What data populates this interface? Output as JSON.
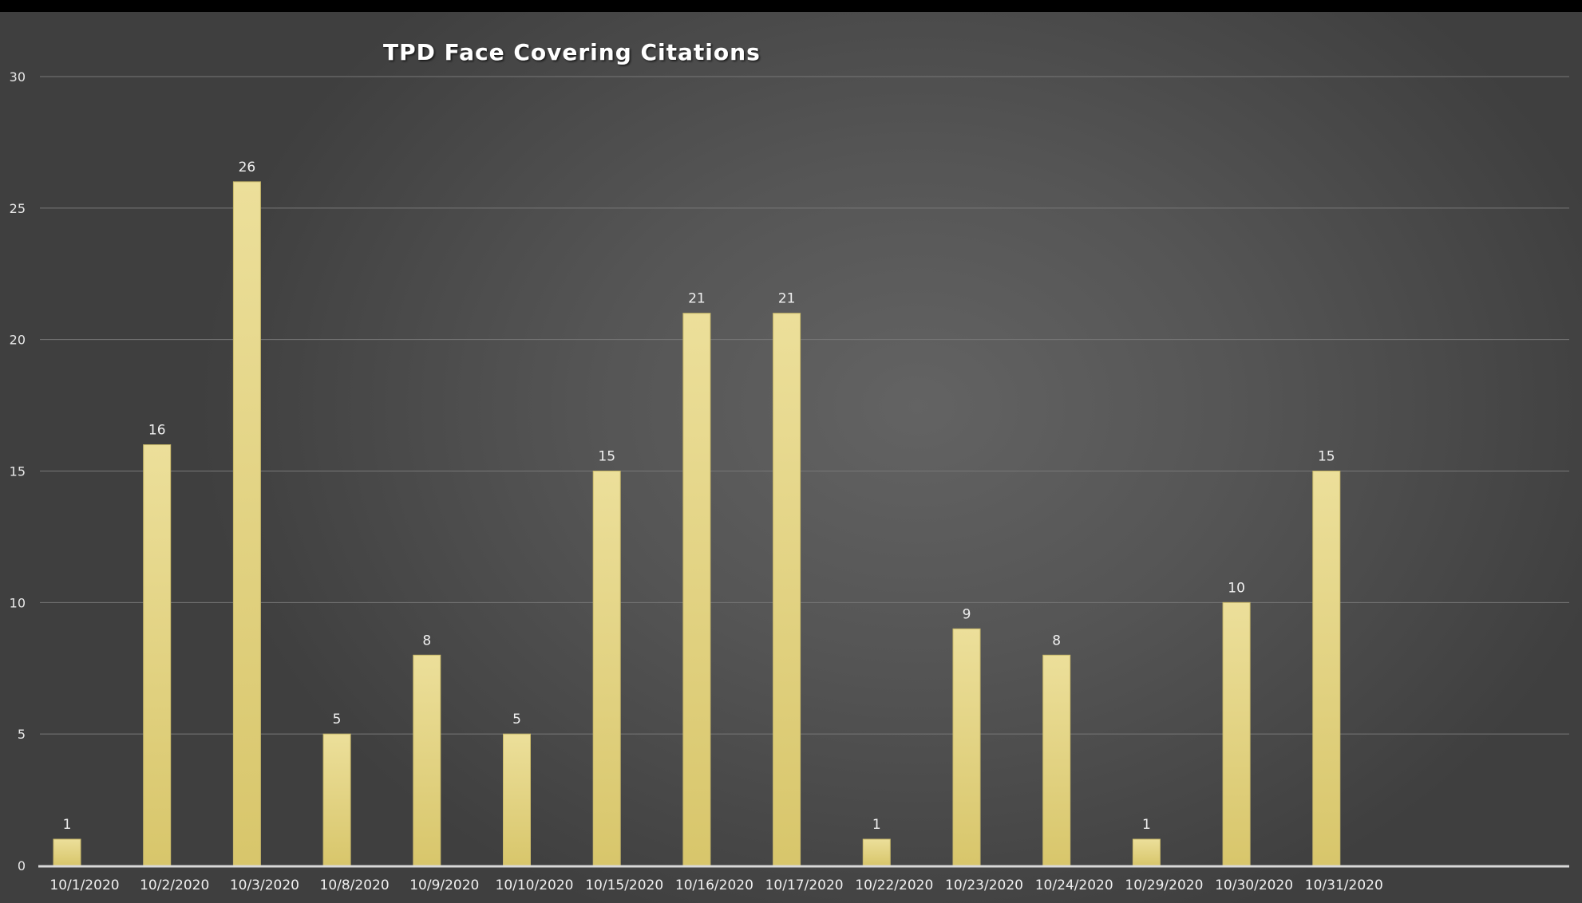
{
  "chart_data": {
    "type": "bar",
    "title": "TPD Face Covering Citations",
    "xlabel": "",
    "ylabel": "",
    "categories": [
      "10/1/2020",
      "10/2/2020",
      "10/3/2020",
      "10/8/2020",
      "10/9/2020",
      "10/10/2020",
      "10/15/2020",
      "10/16/2020",
      "10/17/2020",
      "10/22/2020",
      "10/23/2020",
      "10/24/2020",
      "10/29/2020",
      "10/30/2020",
      "10/31/2020"
    ],
    "values": [
      1,
      16,
      26,
      5,
      8,
      5,
      15,
      21,
      21,
      1,
      9,
      8,
      1,
      10,
      15
    ],
    "ylim": [
      0,
      30
    ],
    "yticks": [
      0,
      5,
      10,
      15,
      20,
      25,
      30
    ],
    "grid": true,
    "data_labels": true,
    "legend": "none",
    "colors": {
      "bar_top": "#ecdf9a",
      "bar_bottom": "#d8c66b",
      "background": "#5a5a5a",
      "text": "#ffffff"
    }
  }
}
